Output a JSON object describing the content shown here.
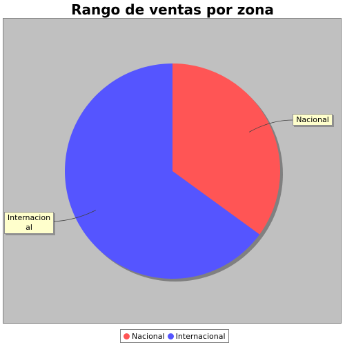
{
  "chart_data": {
    "type": "pie",
    "title": "Rango de ventas por zona",
    "slices": [
      {
        "name": "Nacional",
        "value": 35,
        "color": "#ff5555"
      },
      {
        "name": "Internacional",
        "value": 65,
        "color": "#5555ff"
      }
    ],
    "slice_labels": [
      "Nacional",
      "Internacion al"
    ],
    "legend": {
      "position": "bottom",
      "items": [
        "Nacional",
        "Internacional"
      ]
    },
    "background": "#c0c0c0"
  }
}
